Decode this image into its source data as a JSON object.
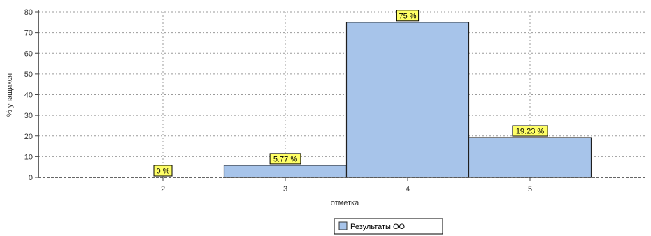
{
  "chart_data": {
    "type": "bar",
    "title": "",
    "xlabel": "отметка",
    "ylabel": "% учащихся",
    "categories": [
      "2",
      "3",
      "4",
      "5"
    ],
    "ylim": [
      0,
      80
    ],
    "yticks": [
      0,
      10,
      20,
      30,
      40,
      50,
      60,
      70,
      80
    ],
    "grid": true,
    "legend_position": "bottom",
    "series": [
      {
        "name": "Результаты ОО",
        "values": [
          0,
          5.77,
          75,
          19.23
        ],
        "labels": [
          "0 %",
          "5.77 %",
          "75 %",
          "19.23 %"
        ],
        "color": "#a7c4ea"
      }
    ],
    "label_bg_color": "#ffff66"
  }
}
